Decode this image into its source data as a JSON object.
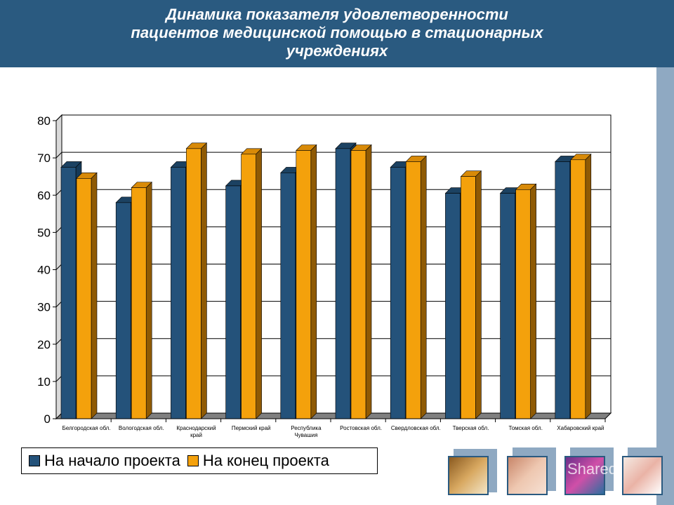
{
  "header": {
    "title_lines": [
      "Динамика показателя удовлетворенности",
      "пациентов медицинской помощью в стационарных",
      "учреждениях"
    ]
  },
  "colors": {
    "header_bg": "#2a5a80",
    "series_start": "#24527a",
    "series_end": "#f4a10c",
    "right_strip": "#8fa9c2"
  },
  "chart_data": {
    "type": "bar",
    "categories": [
      [
        "Белгородская обл."
      ],
      [
        "Вологодская обл."
      ],
      [
        "Краснодарский",
        "край"
      ],
      [
        "Пермский край"
      ],
      [
        "Республика",
        "Чувашия"
      ],
      [
        "Ростовская обл."
      ],
      [
        "Свердловская обл."
      ],
      [
        "Тверская обл."
      ],
      [
        "Томская обл."
      ],
      [
        "Хабаровский край"
      ]
    ],
    "series": [
      {
        "name": "На начало проекта",
        "values": [
          67.5,
          58,
          67.5,
          62.5,
          66,
          72.5,
          67.5,
          60.5,
          60.5,
          69
        ]
      },
      {
        "name": "На конец проекта",
        "values": [
          64.5,
          62,
          72.5,
          71,
          72,
          72,
          69,
          65,
          61.5,
          69.5
        ]
      }
    ],
    "ylim": [
      0,
      80
    ],
    "yticks": [
      "0",
      "10",
      "20",
      "30",
      "40",
      "50",
      "60",
      "70",
      "80"
    ],
    "grid": true,
    "legend_position": "bottom-left",
    "style": "3d-bar"
  },
  "legend": {
    "items": [
      {
        "label": "На начало проекта"
      },
      {
        "label": "На конец проекта"
      }
    ]
  },
  "thumbnails": {
    "watermark": "Shared"
  }
}
